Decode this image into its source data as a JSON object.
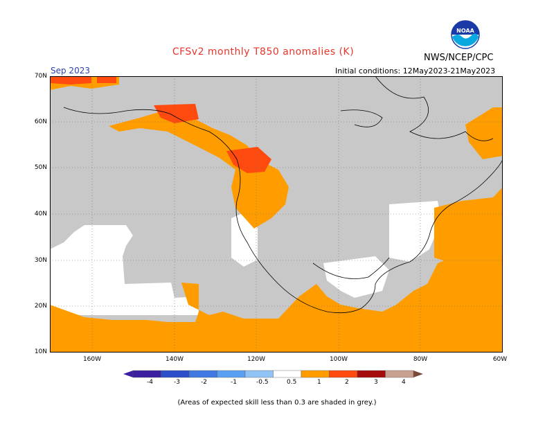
{
  "title": "CFSv2 monthly T850 anomalies (K)",
  "agency": "NWS/NCEP/CPC",
  "logo_text": "NOAA",
  "month": "Sep 2023",
  "initial_conditions": "Initial conditions: 12May2023-21May2023",
  "lat_labels": [
    "70N",
    "60N",
    "50N",
    "40N",
    "30N",
    "20N",
    "10N"
  ],
  "lon_labels": [
    "160W",
    "140W",
    "120W",
    "100W",
    "80W",
    "60W"
  ],
  "colorbar": {
    "labels": [
      "-4",
      "-3",
      "-2",
      "-1",
      "-0.5",
      "0.5",
      "1",
      "2",
      "3",
      "4"
    ],
    "colors": [
      "#3b1fa0",
      "#2a4fc8",
      "#3e78e0",
      "#5aa0f0",
      "#8fc3f6",
      "#ffffff",
      "#ff9d00",
      "#ff4a10",
      "#a50c0c",
      "#c8a090",
      "#7a4a3a"
    ]
  },
  "footnote": "(Areas of expected skill less than 0.3 are shaded in grey.)",
  "legend_colors": {
    "grey_low_skill": "#c8c8c8",
    "orange_0_5_to_1": "#ff9d00",
    "red_1_to_2": "#ff4a10",
    "white_neutral": "#ffffff"
  }
}
